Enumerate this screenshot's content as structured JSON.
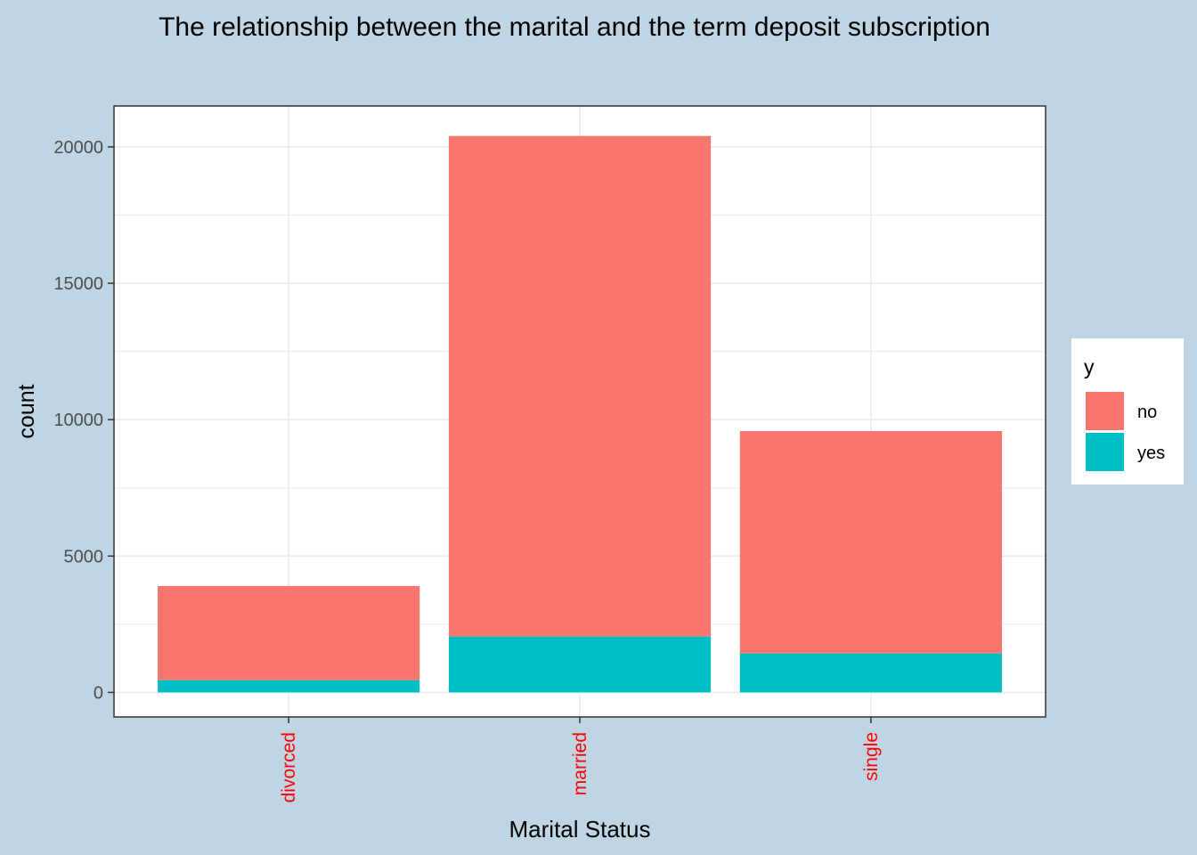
{
  "colors": {
    "background": "#bfd5e3",
    "panel": "#ffffff",
    "grid": "#ebebeb",
    "axis_text": "#4d4d4d",
    "x_tick_text": "#ff0000",
    "no": "#f8766d",
    "yes": "#00bfc4"
  },
  "chart_data": {
    "type": "bar",
    "stacked": true,
    "title": "The relationship between the marital and the term deposit subscription",
    "xlabel": "Marital Status",
    "ylabel": "count",
    "categories": [
      "divorced",
      "married",
      "single"
    ],
    "series": [
      {
        "name": "no",
        "values": [
          3450,
          18350,
          8150
        ]
      },
      {
        "name": "yes",
        "values": [
          450,
          2050,
          1430
        ]
      }
    ],
    "ylim": [
      -900,
      21500
    ],
    "yticks": [
      0,
      5000,
      10000,
      15000,
      20000
    ],
    "grid": true,
    "legend": {
      "title": "y",
      "position": "right",
      "items": [
        "no",
        "yes"
      ]
    }
  }
}
